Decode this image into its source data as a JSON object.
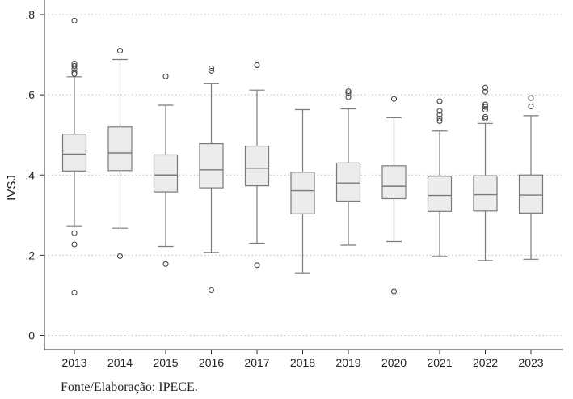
{
  "chart_data": {
    "type": "box",
    "ylabel": "IVSJ",
    "xlabel": "",
    "ylim": [
      0,
      0.8
    ],
    "yticks": [
      0,
      0.2,
      0.4,
      0.6,
      0.8
    ],
    "ytick_labels": [
      "0",
      ".2",
      ".4",
      ".6",
      ".8"
    ],
    "grid": "horizontal-dotted",
    "box_color": "#ececec",
    "line_color": "#7a7a7a",
    "categories": [
      "2013",
      "2014",
      "2015",
      "2016",
      "2017",
      "2018",
      "2019",
      "2020",
      "2021",
      "2022",
      "2023"
    ],
    "boxes": [
      {
        "year": "2013",
        "whisker_low": 0.273,
        "q1": 0.41,
        "median": 0.452,
        "q3": 0.502,
        "whisker_high": 0.645,
        "outliers": [
          0.785,
          0.678,
          0.672,
          0.665,
          0.657,
          0.652,
          0.255,
          0.227,
          0.107
        ]
      },
      {
        "year": "2014",
        "whisker_low": 0.267,
        "q1": 0.411,
        "median": 0.455,
        "q3": 0.52,
        "whisker_high": 0.688,
        "outliers": [
          0.71,
          0.198
        ]
      },
      {
        "year": "2015",
        "whisker_low": 0.222,
        "q1": 0.358,
        "median": 0.4,
        "q3": 0.45,
        "whisker_high": 0.574,
        "outliers": [
          0.646,
          0.178
        ]
      },
      {
        "year": "2016",
        "whisker_low": 0.207,
        "q1": 0.368,
        "median": 0.413,
        "q3": 0.478,
        "whisker_high": 0.628,
        "outliers": [
          0.666,
          0.66,
          0.113
        ]
      },
      {
        "year": "2017",
        "whisker_low": 0.23,
        "q1": 0.373,
        "median": 0.417,
        "q3": 0.472,
        "whisker_high": 0.612,
        "outliers": [
          0.674,
          0.175
        ]
      },
      {
        "year": "2018",
        "whisker_low": 0.156,
        "q1": 0.303,
        "median": 0.361,
        "q3": 0.407,
        "whisker_high": 0.563,
        "outliers": []
      },
      {
        "year": "2019",
        "whisker_low": 0.225,
        "q1": 0.335,
        "median": 0.38,
        "q3": 0.43,
        "whisker_high": 0.565,
        "outliers": [
          0.609,
          0.604,
          0.594
        ]
      },
      {
        "year": "2020",
        "whisker_low": 0.234,
        "q1": 0.341,
        "median": 0.372,
        "q3": 0.423,
        "whisker_high": 0.543,
        "outliers": [
          0.59,
          0.11
        ]
      },
      {
        "year": "2021",
        "whisker_low": 0.197,
        "q1": 0.309,
        "median": 0.349,
        "q3": 0.397,
        "whisker_high": 0.51,
        "outliers": [
          0.584,
          0.56,
          0.55,
          0.541,
          0.535
        ]
      },
      {
        "year": "2022",
        "whisker_low": 0.187,
        "q1": 0.31,
        "median": 0.351,
        "q3": 0.398,
        "whisker_high": 0.529,
        "outliers": [
          0.618,
          0.608,
          0.576,
          0.57,
          0.563,
          0.545,
          0.541
        ]
      },
      {
        "year": "2023",
        "whisker_low": 0.19,
        "q1": 0.305,
        "median": 0.35,
        "q3": 0.4,
        "whisker_high": 0.548,
        "outliers": [
          0.592,
          0.571
        ]
      }
    ]
  },
  "source_note": "Fonte/Elaboração: IPECE."
}
